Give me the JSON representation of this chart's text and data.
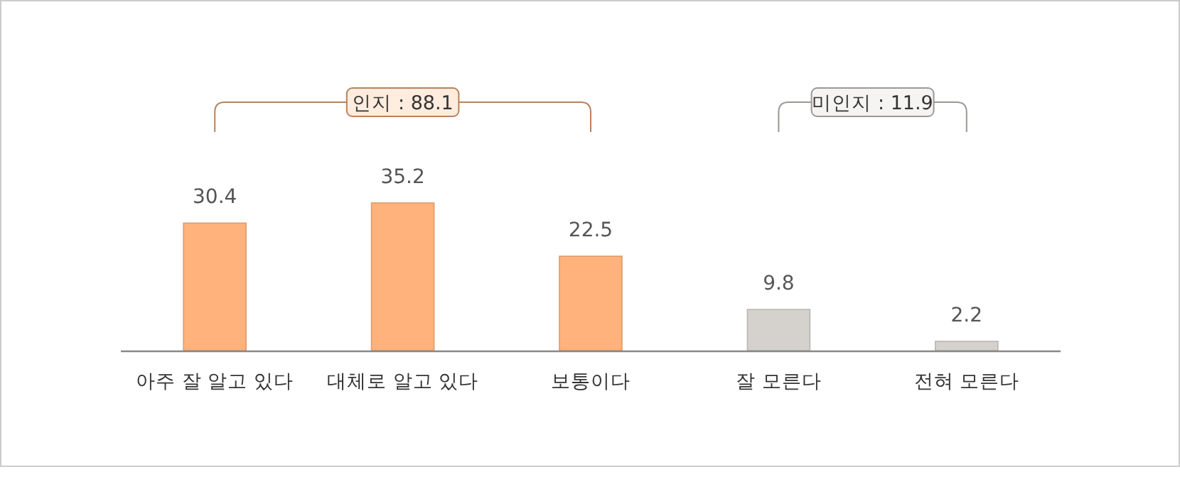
{
  "chart_data": {
    "type": "bar",
    "categories": [
      "아주 잘 알고 있다",
      "대체로 알고 있다",
      "보통이다",
      "잘 모른다",
      "전혀 모른다"
    ],
    "values": [
      30.4,
      35.2,
      22.5,
      9.8,
      2.2
    ],
    "colors": [
      "#ffb27b",
      "#ffb27b",
      "#ffb27b",
      "#d5d2cd",
      "#d5d2cd"
    ],
    "data_labels": true,
    "annotations": [
      "인지 : 88.1",
      "미인지 : 11.9"
    ]
  }
}
